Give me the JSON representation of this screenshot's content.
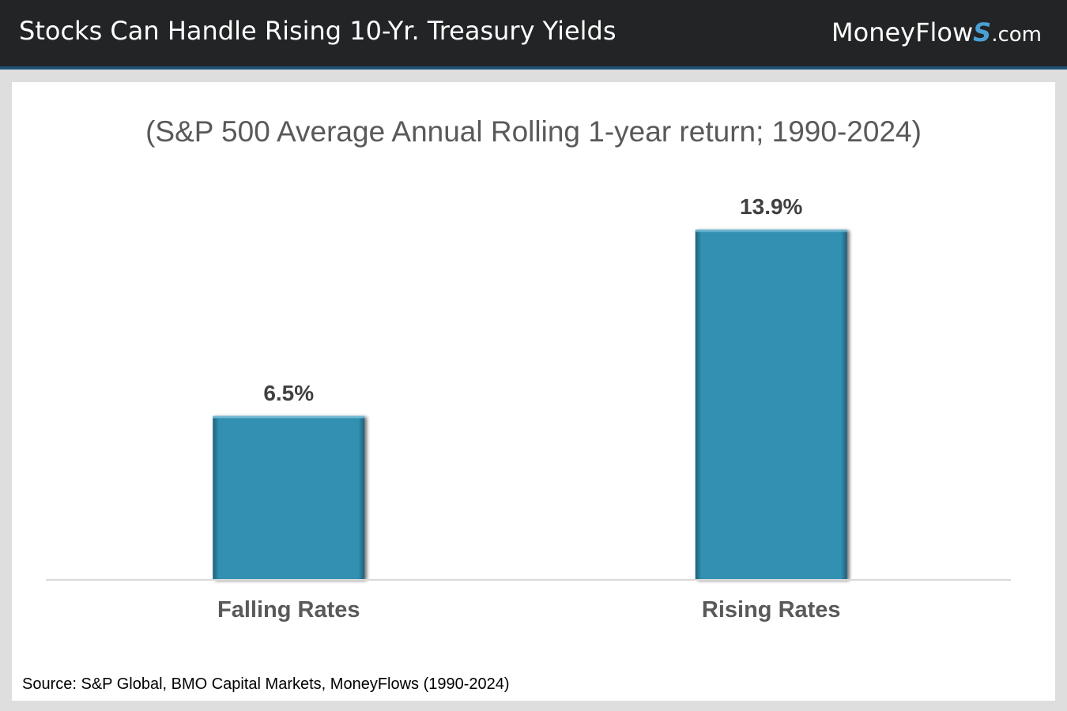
{
  "header": {
    "title": "Stocks Can Handle Rising 10-Yr. Treasury Yields",
    "brand": {
      "name": "MoneyFlow",
      "mark": "S",
      "domain": ".com"
    }
  },
  "colors": {
    "header_bg": "#222425",
    "header_accent": "#1f4f74",
    "bar": "#3290b2",
    "brand_mark": "#4b9fd5"
  },
  "chart_data": {
    "type": "bar",
    "title": "(S&P 500 Average Annual Rolling 1-year return; 1990-2024)",
    "categories": [
      "Falling Rates",
      "Rising Rates"
    ],
    "values": [
      6.5,
      13.9
    ],
    "data_labels": [
      "6.5%",
      "13.9%"
    ],
    "xlabel": "",
    "ylabel": "",
    "ylim": [
      0,
      16
    ],
    "grid": false,
    "legend": "none"
  },
  "footer": {
    "source": "Source: S&P Global, BMO Capital Markets, MoneyFlows (1990-2024)"
  }
}
